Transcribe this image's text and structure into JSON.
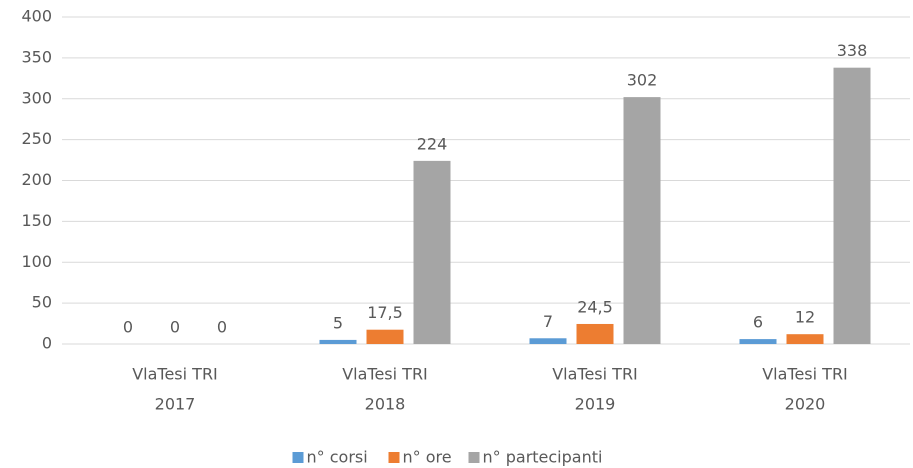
{
  "chart_data": {
    "type": "bar",
    "categories": [
      [
        "VlaTesi TRI",
        "2017"
      ],
      [
        "VlaTesi TRI",
        "2018"
      ],
      [
        "VlaTesi TRI",
        "2019"
      ],
      [
        "VlaTesi TRI",
        "2020"
      ]
    ],
    "series": [
      {
        "name": "n° corsi",
        "color": "#5b9bd5",
        "values": [
          0,
          5,
          7,
          6
        ]
      },
      {
        "name": "n° ore",
        "color": "#ed7d31",
        "values": [
          0,
          17.5,
          24.5,
          12
        ],
        "value_labels": [
          "0",
          "17,5",
          "24,5",
          "12"
        ]
      },
      {
        "name": "n° partecipanti",
        "color": "#a5a5a5",
        "values": [
          0,
          224,
          302,
          338
        ]
      }
    ],
    "ylim": [
      0,
      400
    ],
    "yticks": [
      0,
      50,
      100,
      150,
      200,
      250,
      300,
      350,
      400
    ],
    "grid": true,
    "legend": "bottom"
  }
}
